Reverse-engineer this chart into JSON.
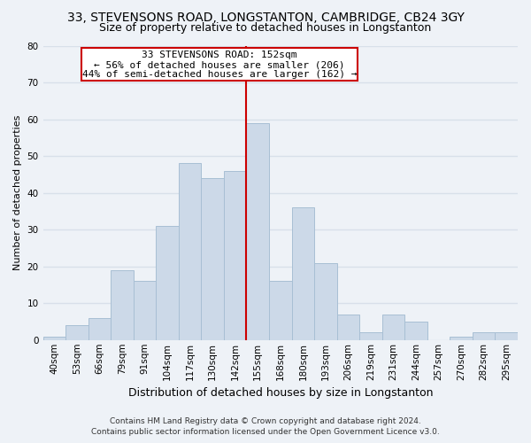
{
  "title": "33, STEVENSONS ROAD, LONGSTANTON, CAMBRIDGE, CB24 3GY",
  "subtitle": "Size of property relative to detached houses in Longstanton",
  "xlabel": "Distribution of detached houses by size in Longstanton",
  "ylabel": "Number of detached properties",
  "bar_color": "#ccd9e8",
  "bar_edge_color": "#a8bfd4",
  "background_color": "#eef2f7",
  "categories": [
    "40sqm",
    "53sqm",
    "66sqm",
    "79sqm",
    "91sqm",
    "104sqm",
    "117sqm",
    "130sqm",
    "142sqm",
    "155sqm",
    "168sqm",
    "180sqm",
    "193sqm",
    "206sqm",
    "219sqm",
    "231sqm",
    "244sqm",
    "257sqm",
    "270sqm",
    "282sqm",
    "295sqm"
  ],
  "values": [
    1,
    4,
    6,
    19,
    16,
    31,
    48,
    44,
    46,
    59,
    16,
    36,
    21,
    7,
    2,
    7,
    5,
    0,
    1,
    2,
    2
  ],
  "marker_line_color": "#cc0000",
  "annotation_text_line1": "33 STEVENSONS ROAD: 152sqm",
  "annotation_text_line2": "← 56% of detached houses are smaller (206)",
  "annotation_text_line3": "44% of semi-detached houses are larger (162) →",
  "ylim": [
    0,
    80
  ],
  "yticks": [
    0,
    10,
    20,
    30,
    40,
    50,
    60,
    70,
    80
  ],
  "footer_line1": "Contains HM Land Registry data © Crown copyright and database right 2024.",
  "footer_line2": "Contains public sector information licensed under the Open Government Licence v3.0.",
  "grid_color": "#d8e0ea",
  "title_fontsize": 10,
  "subtitle_fontsize": 9,
  "xlabel_fontsize": 9,
  "ylabel_fontsize": 8,
  "tick_fontsize": 7.5,
  "annotation_fontsize": 8,
  "footer_fontsize": 6.5
}
